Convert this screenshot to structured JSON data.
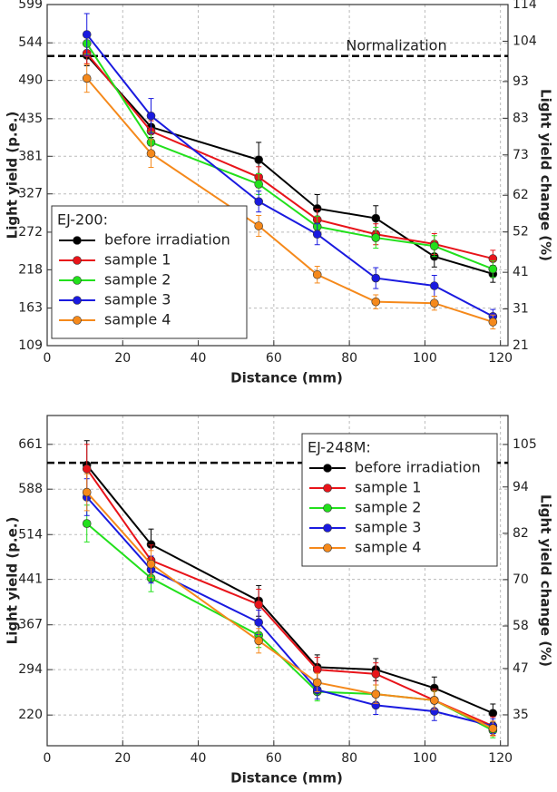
{
  "chart_data": [
    {
      "type": "line",
      "xlabel": "Distance (mm)",
      "ylabel": "Light yield (p.e.)",
      "y2label": "Light yield change (%)",
      "x": [
        10.5,
        27.5,
        56,
        71.5,
        87,
        102.5,
        118
      ],
      "series": [
        {
          "name": "before irradiation",
          "color": "#000000",
          "values": [
            526,
            423,
            376,
            306,
            292,
            237,
            212
          ],
          "errors": [
            15,
            15,
            25,
            20,
            18,
            15,
            12
          ]
        },
        {
          "name": "sample 1",
          "color": "#e8141a",
          "values": [
            529,
            417,
            351,
            290,
            269,
            255,
            234
          ],
          "errors": [
            15,
            15,
            15,
            15,
            15,
            15,
            12
          ]
        },
        {
          "name": "sample 2",
          "color": "#22e01c",
          "values": [
            543,
            401,
            341,
            280,
            264,
            252,
            219
          ],
          "errors": [
            15,
            15,
            15,
            15,
            15,
            15,
            12
          ]
        },
        {
          "name": "sample 3",
          "color": "#1a1adf",
          "values": [
            556,
            439,
            316,
            269,
            206,
            195,
            151
          ],
          "errors": [
            30,
            25,
            15,
            15,
            15,
            15,
            10
          ]
        },
        {
          "name": "sample 4",
          "color": "#f5891b",
          "values": [
            493,
            385,
            281,
            211,
            172,
            170,
            143
          ],
          "errors": [
            20,
            20,
            15,
            12,
            10,
            10,
            10
          ]
        }
      ],
      "xlim": [
        0,
        122
      ],
      "xticks": [
        0,
        20,
        40,
        60,
        80,
        100,
        120
      ],
      "ylim": [
        109,
        599
      ],
      "yticks": [
        109,
        163,
        218,
        272,
        327,
        381,
        435,
        490,
        544,
        599
      ],
      "y2lim": [
        21,
        114
      ],
      "y2ticks": [
        21,
        31,
        41,
        52,
        62,
        73,
        83,
        93,
        104,
        114
      ],
      "normalization": {
        "label": "Normalization",
        "value": 525
      },
      "legend": {
        "title": "EJ-200:",
        "loc": "lower left"
      },
      "grid": true
    },
    {
      "type": "line",
      "xlabel": "Distance (mm)",
      "ylabel": "Light yield (p.e.)",
      "y2label": "Light yield change (%)",
      "x": [
        10.5,
        27.5,
        56,
        71.5,
        87,
        102.5,
        118
      ],
      "series": [
        {
          "name": "before irradiation",
          "color": "#000000",
          "values": [
            627,
            498,
            406,
            298,
            294,
            264,
            223
          ],
          "errors": [
            40,
            25,
            25,
            20,
            18,
            18,
            15
          ]
        },
        {
          "name": "sample 1",
          "color": "#e8141a",
          "values": [
            621,
            472,
            400,
            294,
            287,
            244,
            202
          ],
          "errors": [
            40,
            25,
            25,
            20,
            18,
            18,
            15
          ]
        },
        {
          "name": "sample 2",
          "color": "#22e01c",
          "values": [
            532,
            443,
            350,
            258,
            254,
            244,
            195
          ],
          "errors": [
            30,
            22,
            20,
            15,
            15,
            15,
            12
          ]
        },
        {
          "name": "sample 3",
          "color": "#1a1adf",
          "values": [
            575,
            457,
            371,
            261,
            236,
            226,
            202
          ],
          "errors": [
            30,
            22,
            20,
            15,
            15,
            15,
            12
          ]
        },
        {
          "name": "sample 4",
          "color": "#f5891b",
          "values": [
            583,
            466,
            341,
            273,
            254,
            244,
            198
          ],
          "errors": [
            30,
            22,
            20,
            15,
            15,
            15,
            12
          ]
        }
      ],
      "xlim": [
        0,
        122
      ],
      "xticks": [
        0,
        20,
        40,
        60,
        80,
        100,
        120
      ],
      "ylim": [
        170,
        708
      ],
      "yticks": [
        220,
        294,
        367,
        441,
        514,
        588,
        661
      ],
      "y2lim": [
        27,
        112.5
      ],
      "y2ticks": [
        35,
        47,
        58,
        70,
        82,
        94,
        105
      ],
      "normalization": {
        "label": "Normalization",
        "value": 631
      },
      "legend": {
        "title": "EJ-248M:",
        "loc": "upper right"
      },
      "grid": true
    }
  ]
}
